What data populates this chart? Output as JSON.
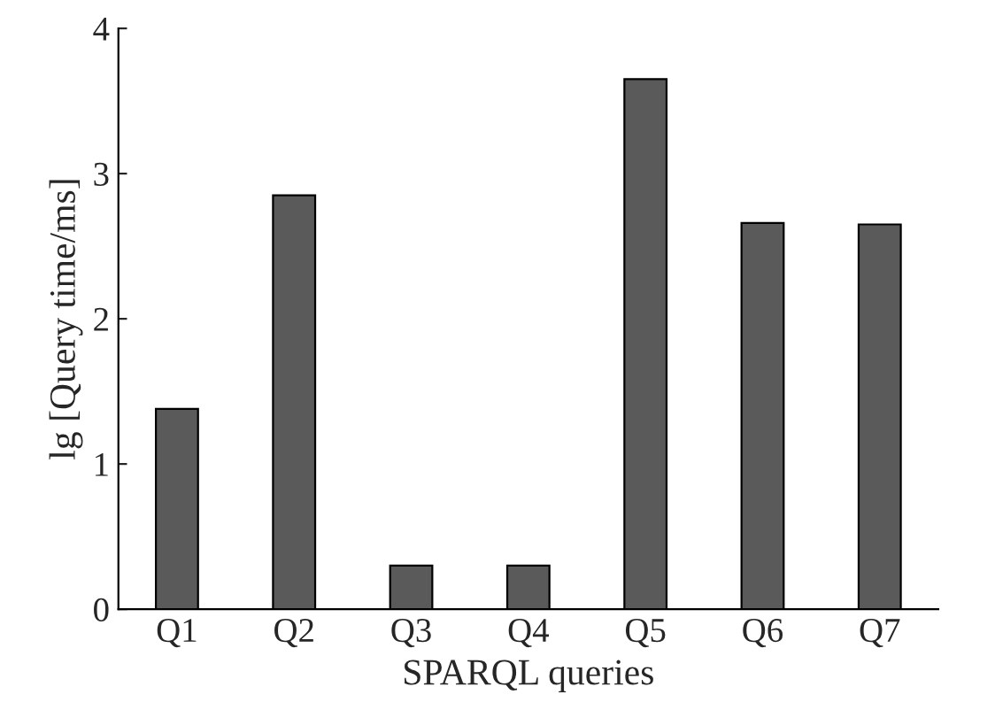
{
  "chart_data": {
    "type": "bar",
    "xlabel": "SPARQL queries",
    "ylabel": "lg [Query time/ms]",
    "categories": [
      "Q1",
      "Q2",
      "Q3",
      "Q4",
      "Q5",
      "Q6",
      "Q7"
    ],
    "values": [
      1.38,
      2.85,
      0.3,
      0.3,
      3.65,
      2.66,
      2.65
    ],
    "color": "#5a5a5a",
    "ylim": [
      0,
      4
    ],
    "yticks": [
      0,
      1,
      2,
      3,
      4
    ],
    "grid": false,
    "legend": false
  }
}
